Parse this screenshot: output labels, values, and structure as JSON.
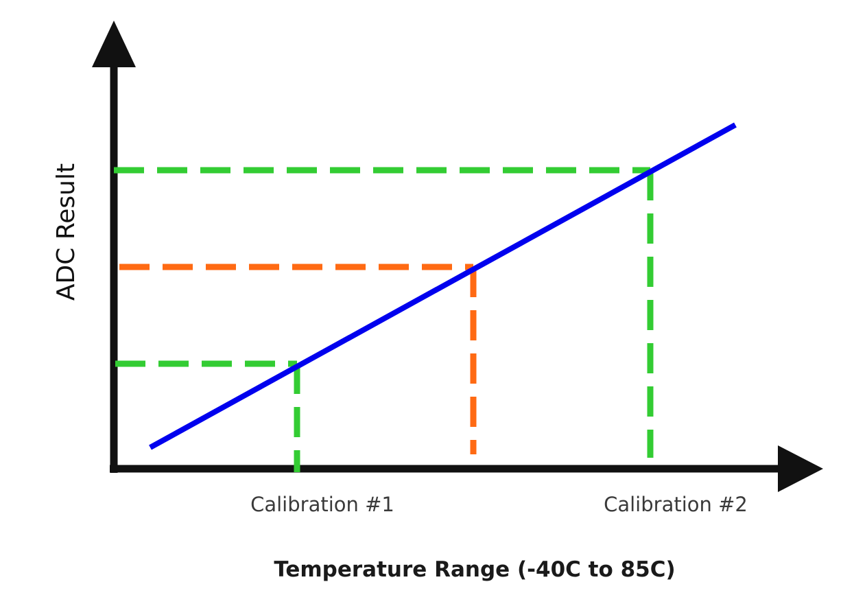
{
  "diagram": {
    "y_axis_label": "ADC Result",
    "x_axis_label": "Temperature Range (-40C to 85C)",
    "markers": [
      {
        "label": "Calibration #1",
        "color": "#33cc33"
      },
      {
        "label": "Calibration #2",
        "color": "#33cc33"
      }
    ],
    "measured_point_color": "#ff6a13",
    "transfer_line_color": "#0000ee",
    "axis_color": "#111111"
  }
}
